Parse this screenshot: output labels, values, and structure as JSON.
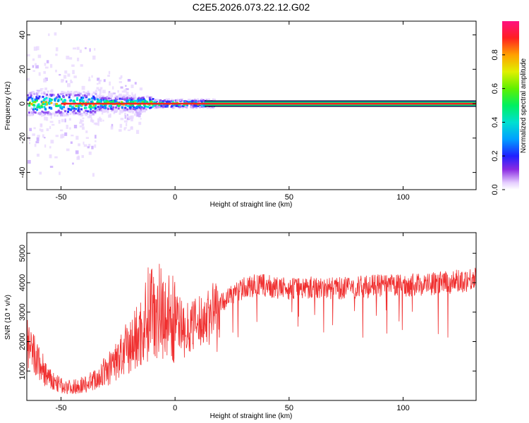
{
  "figure_title": "C2E5.2026.073.22.12.G02",
  "chart_data": [
    {
      "type": "heatmap",
      "title": "C2E5.2026.073.22.12.G02",
      "xlabel": "Height of straight line (km)",
      "ylabel": "Frequency (Hz)",
      "xlim": [
        -65,
        132
      ],
      "ylim": [
        -50,
        48
      ],
      "xticks": [
        -50,
        0,
        50,
        100
      ],
      "yticks": [
        -40,
        -20,
        0,
        20,
        40
      ],
      "colorbar": {
        "label": "Normalized spectral amplitude",
        "range": [
          0,
          1
        ],
        "ticks": [
          "0.0",
          "0.2",
          "0.4",
          "0.6",
          "0.8"
        ],
        "tick_values": [
          0.0,
          0.2,
          0.4,
          0.6,
          0.8
        ]
      },
      "carrier_frequency_hz": 0,
      "notes": "Spectral energy concentrated near 0 Hz; broad noisy spread below ~0 km, narrow strong line above ~15 km"
    },
    {
      "type": "line",
      "xlabel": "Height of straight line (km)",
      "ylabel": "SNR (10 * v/v)",
      "xlim": [
        -65,
        132
      ],
      "ylim": [
        0,
        5700
      ],
      "xticks": [
        -50,
        0,
        50,
        100
      ],
      "yticks": [
        1000,
        2000,
        3000,
        4000,
        5000
      ],
      "line_color": "#f03030",
      "series": [
        {
          "name": "SNR",
          "x": [
            -65,
            -60,
            -55,
            -50,
            -45,
            -40,
            -35,
            -30,
            -25,
            -20,
            -15,
            -12,
            -10,
            -8,
            -5,
            0,
            5,
            10,
            15,
            20,
            25,
            30,
            35,
            40,
            45,
            50,
            60,
            70,
            80,
            90,
            100,
            110,
            120,
            132
          ],
          "values": [
            1800,
            1300,
            700,
            500,
            450,
            550,
            700,
            1000,
            1400,
            1800,
            2300,
            2900,
            3400,
            3100,
            3000,
            2700,
            2500,
            2600,
            2900,
            3300,
            3600,
            3800,
            3900,
            3900,
            3800,
            3800,
            3850,
            3800,
            3850,
            3900,
            3900,
            3950,
            4000,
            4150
          ]
        }
      ]
    }
  ]
}
